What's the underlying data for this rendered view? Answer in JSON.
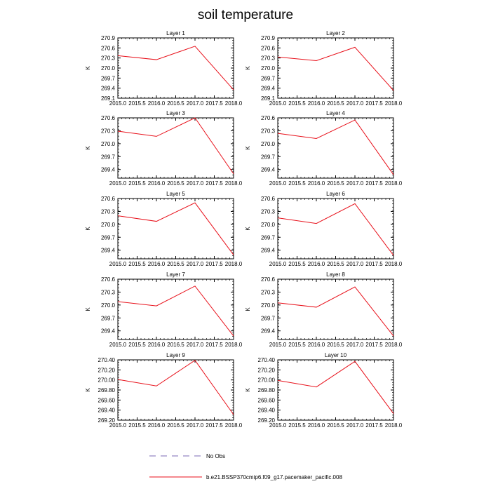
{
  "figure": {
    "title": "soil temperature",
    "legend": [
      {
        "label": "No Obs",
        "color": "#7b68b5",
        "dash": true
      },
      {
        "label": "b.e21.BSSP370cmip6.f09_g17.pacemaker_pacific.008",
        "color": "#e8111b",
        "dash": false
      }
    ],
    "line_color": "#e8111b"
  },
  "chart_data": [
    {
      "type": "line",
      "title": "Layer 1",
      "xlabel": "",
      "ylabel": "K",
      "xlim": [
        2015.0,
        2018.0
      ],
      "ylim": [
        269.1,
        270.9
      ],
      "x_ticks": [
        "2015.0",
        "2015.5",
        "2016.0",
        "2016.5",
        "2017.0",
        "2017.5",
        "2018.0"
      ],
      "y_ticks": [
        "269.1",
        "269.4",
        "269.7",
        "270.0",
        "270.3",
        "270.6",
        "270.9"
      ],
      "series": [
        {
          "x": [
            2015.0,
            2016.0,
            2017.0,
            2018.0
          ],
          "y": [
            270.37,
            270.25,
            270.65,
            269.35
          ]
        }
      ]
    },
    {
      "type": "line",
      "title": "Layer 2",
      "xlabel": "",
      "ylabel": "K",
      "xlim": [
        2015.0,
        2018.0
      ],
      "ylim": [
        269.1,
        270.9
      ],
      "x_ticks": [
        "2015.0",
        "2015.5",
        "2016.0",
        "2016.5",
        "2017.0",
        "2017.5",
        "2018.0"
      ],
      "y_ticks": [
        "269.1",
        "269.4",
        "269.7",
        "270.0",
        "270.3",
        "270.6",
        "270.9"
      ],
      "series": [
        {
          "x": [
            2015.0,
            2016.0,
            2017.0,
            2018.0
          ],
          "y": [
            270.33,
            270.22,
            270.62,
            269.33
          ]
        }
      ]
    },
    {
      "type": "line",
      "title": "Layer 3",
      "xlabel": "",
      "ylabel": "K",
      "xlim": [
        2015.0,
        2018.0
      ],
      "ylim": [
        269.2,
        270.6
      ],
      "x_ticks": [
        "2015.0",
        "2015.5",
        "2016.0",
        "2016.5",
        "2017.0",
        "2017.5",
        "2018.0"
      ],
      "y_ticks": [
        "269.4",
        "269.7",
        "270.0",
        "270.3",
        "270.6"
      ],
      "series": [
        {
          "x": [
            2015.0,
            2016.0,
            2017.0,
            2018.0
          ],
          "y": [
            270.29,
            270.17,
            270.6,
            269.3
          ]
        }
      ]
    },
    {
      "type": "line",
      "title": "Layer 4",
      "xlabel": "",
      "ylabel": "K",
      "xlim": [
        2015.0,
        2018.0
      ],
      "ylim": [
        269.2,
        270.6
      ],
      "x_ticks": [
        "2015.0",
        "2015.5",
        "2016.0",
        "2016.5",
        "2017.0",
        "2017.5",
        "2018.0"
      ],
      "y_ticks": [
        "269.4",
        "269.7",
        "270.0",
        "270.3",
        "270.6"
      ],
      "series": [
        {
          "x": [
            2015.0,
            2016.0,
            2017.0,
            2018.0
          ],
          "y": [
            270.24,
            270.12,
            270.55,
            269.28
          ]
        }
      ]
    },
    {
      "type": "line",
      "title": "Layer 5",
      "xlabel": "",
      "ylabel": "K",
      "xlim": [
        2015.0,
        2018.0
      ],
      "ylim": [
        269.2,
        270.6
      ],
      "x_ticks": [
        "2015.0",
        "2015.5",
        "2016.0",
        "2016.5",
        "2017.0",
        "2017.5",
        "2018.0"
      ],
      "y_ticks": [
        "269.4",
        "269.7",
        "270.0",
        "270.3",
        "270.6"
      ],
      "series": [
        {
          "x": [
            2015.0,
            2016.0,
            2017.0,
            2018.0
          ],
          "y": [
            270.2,
            270.07,
            270.5,
            269.29
          ]
        }
      ]
    },
    {
      "type": "line",
      "title": "Layer 6",
      "xlabel": "",
      "ylabel": "K",
      "xlim": [
        2015.0,
        2018.0
      ],
      "ylim": [
        269.2,
        270.6
      ],
      "x_ticks": [
        "2015.0",
        "2015.5",
        "2016.0",
        "2016.5",
        "2017.0",
        "2017.5",
        "2018.0"
      ],
      "y_ticks": [
        "269.4",
        "269.7",
        "270.0",
        "270.3",
        "270.6"
      ],
      "series": [
        {
          "x": [
            2015.0,
            2016.0,
            2017.0,
            2018.0
          ],
          "y": [
            270.15,
            270.02,
            270.48,
            269.28
          ]
        }
      ]
    },
    {
      "type": "line",
      "title": "Layer 7",
      "xlabel": "",
      "ylabel": "K",
      "xlim": [
        2015.0,
        2018.0
      ],
      "ylim": [
        269.2,
        270.6
      ],
      "x_ticks": [
        "2015.0",
        "2015.5",
        "2016.0",
        "2016.5",
        "2017.0",
        "2017.5",
        "2018.0"
      ],
      "y_ticks": [
        "269.4",
        "269.7",
        "270.0",
        "270.3",
        "270.6"
      ],
      "series": [
        {
          "x": [
            2015.0,
            2016.0,
            2017.0,
            2018.0
          ],
          "y": [
            270.08,
            269.98,
            270.44,
            269.28
          ]
        }
      ]
    },
    {
      "type": "line",
      "title": "Layer 8",
      "xlabel": "",
      "ylabel": "K",
      "xlim": [
        2015.0,
        2018.0
      ],
      "ylim": [
        269.2,
        270.6
      ],
      "x_ticks": [
        "2015.0",
        "2015.5",
        "2016.0",
        "2016.5",
        "2017.0",
        "2017.5",
        "2018.0"
      ],
      "y_ticks": [
        "269.4",
        "269.7",
        "270.0",
        "270.3",
        "270.6"
      ],
      "series": [
        {
          "x": [
            2015.0,
            2016.0,
            2017.0,
            2018.0
          ],
          "y": [
            270.05,
            269.95,
            270.42,
            269.28
          ]
        }
      ]
    },
    {
      "type": "line",
      "title": "Layer 9",
      "xlabel": "",
      "ylabel": "K",
      "xlim": [
        2015.0,
        2018.0
      ],
      "ylim": [
        269.2,
        270.4
      ],
      "x_ticks": [
        "2015.0",
        "2015.5",
        "2016.0",
        "2016.5",
        "2017.0",
        "2017.5",
        "2018.0"
      ],
      "y_ticks": [
        "269.20",
        "269.40",
        "269.60",
        "269.80",
        "270.00",
        "270.20",
        "270.40"
      ],
      "series": [
        {
          "x": [
            2015.0,
            2016.0,
            2017.0,
            2018.0
          ],
          "y": [
            270.01,
            269.88,
            270.39,
            269.31
          ]
        }
      ]
    },
    {
      "type": "line",
      "title": "Layer 10",
      "xlabel": "",
      "ylabel": "K",
      "xlim": [
        2015.0,
        2018.0
      ],
      "ylim": [
        269.2,
        270.4
      ],
      "x_ticks": [
        "2015.0",
        "2015.5",
        "2016.0",
        "2016.5",
        "2017.0",
        "2017.5",
        "2018.0"
      ],
      "y_ticks": [
        "269.20",
        "269.40",
        "269.60",
        "269.80",
        "270.00",
        "270.20",
        "270.40"
      ],
      "series": [
        {
          "x": [
            2015.0,
            2016.0,
            2017.0,
            2018.0
          ],
          "y": [
            269.99,
            269.86,
            270.37,
            269.33
          ]
        }
      ]
    }
  ]
}
